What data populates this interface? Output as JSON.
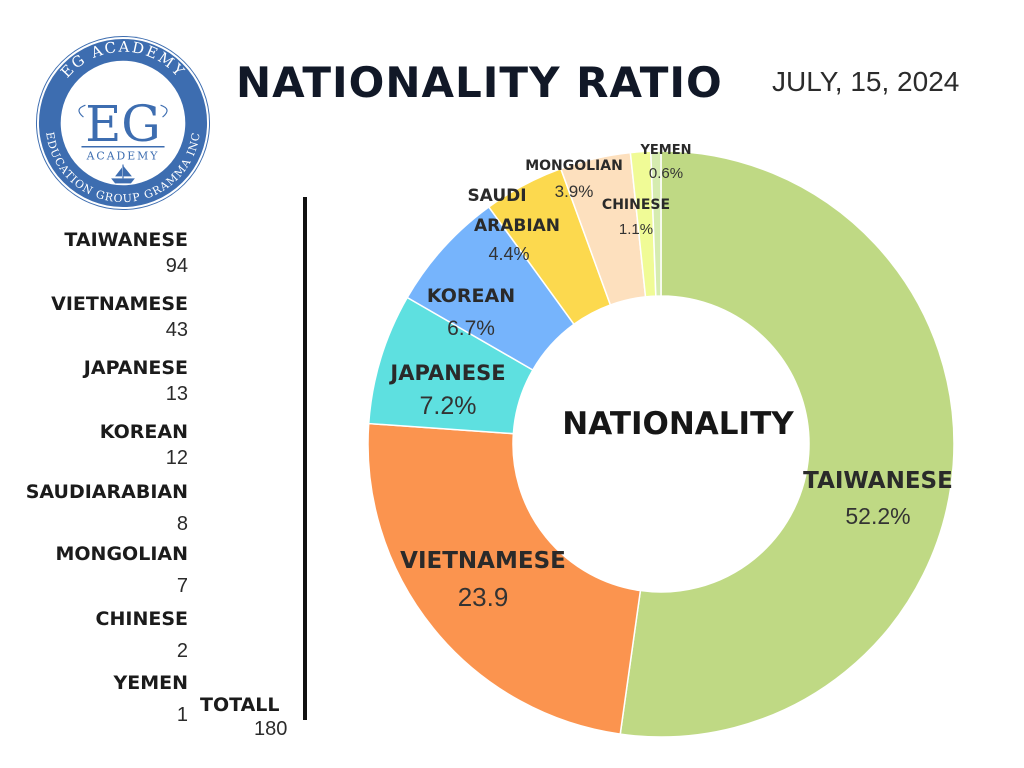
{
  "header": {
    "title": "NATIONALITY RATIO",
    "date": "JULY, 15, 2024"
  },
  "logo": {
    "ring_top": "EG ACADEMY",
    "ring_bottom": "EDUCATION GROUP GRAMMA INC",
    "monogram": "EG",
    "subtitle": "ACADEMY",
    "colors": {
      "ring": "#3d6db0",
      "inner": "#ffffff",
      "text": "#3d6db0"
    }
  },
  "legend": {
    "items": [
      {
        "name": "TAIWANESE",
        "count": "94"
      },
      {
        "name": "VIETNAMESE",
        "count": "43"
      },
      {
        "name": "JAPANESE",
        "count": "13"
      },
      {
        "name": "KOREAN",
        "count": "12"
      },
      {
        "name": "SAUDIARABIAN",
        "count": "8"
      },
      {
        "name": "MONGOLIAN",
        "count": "7"
      },
      {
        "name": "CHINESE",
        "count": "2"
      },
      {
        "name": "YEMEN",
        "count": "1"
      }
    ],
    "total_label": "TOTALL",
    "total_value": "180"
  },
  "chart_data": {
    "type": "pie",
    "donut": true,
    "center_label": "NATIONALITY",
    "slices": [
      {
        "name": "TAIWANESE",
        "value": 94,
        "percent": 52.2,
        "percent_label": "52.2%",
        "color": "#bfd984"
      },
      {
        "name": "VIETNAMESE",
        "value": 43,
        "percent": 23.9,
        "percent_label": "23.9",
        "color": "#fb944f"
      },
      {
        "name": "JAPANESE",
        "value": 13,
        "percent": 7.2,
        "percent_label": "7.2%",
        "color": "#5ee0e0"
      },
      {
        "name": "KOREAN",
        "value": 12,
        "percent": 6.7,
        "percent_label": "6.7%",
        "color": "#76b4fc"
      },
      {
        "name": "SAUDI ARABIAN",
        "value": 8,
        "percent": 4.4,
        "percent_label": "4.4%",
        "color": "#fcd94e"
      },
      {
        "name": "MONGOLIAN",
        "value": 7,
        "percent": 3.9,
        "percent_label": "3.9%",
        "color": "#fde0be"
      },
      {
        "name": "CHINESE",
        "value": 2,
        "percent": 1.1,
        "percent_label": "1.1%",
        "color": "#f0fb96"
      },
      {
        "name": "YEMEN",
        "value": 1,
        "percent": 0.6,
        "percent_label": "0.6%",
        "color": "#d6ecb0"
      }
    ]
  }
}
